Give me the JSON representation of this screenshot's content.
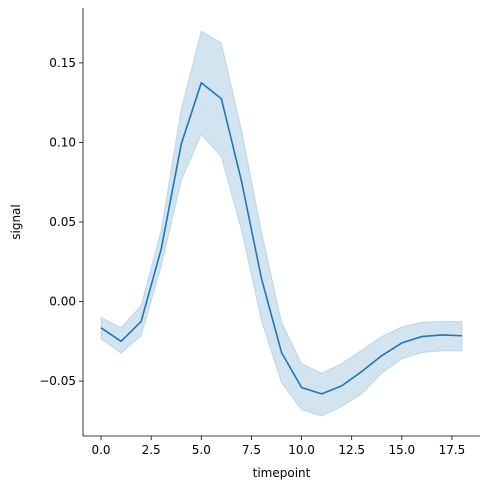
{
  "chart_data": {
    "type": "line",
    "title": "",
    "xlabel": "timepoint",
    "ylabel": "signal",
    "xlim": [
      -0.9,
      18.9
    ],
    "ylim": [
      -0.0845,
      0.1845
    ],
    "grid": false,
    "legend": "none",
    "x_ticks": [
      {
        "value": 0.0,
        "label": "0.0"
      },
      {
        "value": 2.5,
        "label": "2.5"
      },
      {
        "value": 5.0,
        "label": "5.0"
      },
      {
        "value": 7.5,
        "label": "7.5"
      },
      {
        "value": 10.0,
        "label": "10.0"
      },
      {
        "value": 12.5,
        "label": "12.5"
      },
      {
        "value": 15.0,
        "label": "15.0"
      },
      {
        "value": 17.5,
        "label": "17.5"
      }
    ],
    "y_ticks": [
      {
        "value": -0.05,
        "label": "−0.05"
      },
      {
        "value": 0.0,
        "label": "0.00"
      },
      {
        "value": 0.05,
        "label": "0.05"
      },
      {
        "value": 0.1,
        "label": "0.10"
      },
      {
        "value": 0.15,
        "label": "0.15"
      }
    ],
    "series": [
      {
        "color": "#1f77b4",
        "band_color": "#1f77b4",
        "x": [
          0,
          1,
          2,
          3,
          4,
          5,
          6,
          7,
          8,
          9,
          10,
          11,
          12,
          13,
          14,
          15,
          16,
          17,
          18
        ],
        "y": [
          -0.0165,
          -0.025,
          -0.0125,
          0.033,
          0.099,
          0.1375,
          0.1275,
          0.076,
          0.0145,
          -0.032,
          -0.054,
          -0.058,
          -0.053,
          -0.044,
          -0.034,
          -0.026,
          -0.022,
          -0.021,
          -0.0215
        ],
        "lower": [
          -0.0235,
          -0.0325,
          -0.0215,
          0.022,
          0.076,
          0.105,
          0.091,
          0.045,
          -0.012,
          -0.051,
          -0.068,
          -0.072,
          -0.066,
          -0.058,
          -0.045,
          -0.036,
          -0.032,
          -0.031,
          -0.031
        ],
        "upper": [
          -0.01,
          -0.0165,
          -0.0025,
          0.045,
          0.121,
          0.17,
          0.1625,
          0.108,
          0.044,
          -0.013,
          -0.039,
          -0.045,
          -0.039,
          -0.0305,
          -0.022,
          -0.016,
          -0.013,
          -0.0125,
          -0.0125
        ]
      }
    ]
  }
}
